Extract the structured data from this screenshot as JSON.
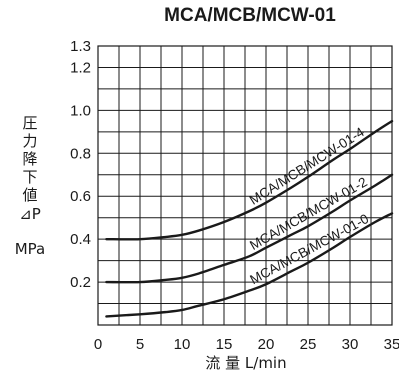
{
  "chart_data": {
    "type": "line",
    "title": "MCA/MCB/MCW-01",
    "ylabel_chars": [
      "圧",
      "力",
      "降",
      "下",
      "値",
      "⊿P"
    ],
    "ylabel_unit": "MPa",
    "xlabel": "流 量 L/min",
    "xlim": [
      0,
      35
    ],
    "ylim": [
      0,
      1.3
    ],
    "x_ticks": [
      0,
      5,
      10,
      15,
      20,
      25,
      30,
      35
    ],
    "y_ticks": [
      0.2,
      0.4,
      0.6,
      0.8,
      1.0,
      1.2,
      1.3
    ],
    "grid": true,
    "series": [
      {
        "name": "MCA/MCB/MCW-01-4",
        "x": [
          1,
          5,
          8,
          10,
          12,
          15,
          18,
          20,
          23,
          25,
          28,
          30,
          33,
          35
        ],
        "y": [
          0.4,
          0.4,
          0.41,
          0.42,
          0.44,
          0.48,
          0.53,
          0.57,
          0.64,
          0.69,
          0.77,
          0.82,
          0.9,
          0.95
        ]
      },
      {
        "name": "MCA/MCB/MCW-01-2",
        "x": [
          1,
          5,
          8,
          10,
          12,
          15,
          18,
          20,
          23,
          25,
          28,
          30,
          33,
          35
        ],
        "y": [
          0.2,
          0.2,
          0.21,
          0.22,
          0.24,
          0.28,
          0.32,
          0.36,
          0.42,
          0.46,
          0.53,
          0.58,
          0.65,
          0.7
        ]
      },
      {
        "name": "MCA/MCB/MCW-01-0",
        "x": [
          1,
          5,
          8,
          10,
          12,
          15,
          18,
          20,
          23,
          25,
          28,
          30,
          33,
          35
        ],
        "y": [
          0.04,
          0.05,
          0.06,
          0.07,
          0.09,
          0.12,
          0.16,
          0.19,
          0.25,
          0.29,
          0.36,
          0.41,
          0.48,
          0.52
        ]
      }
    ]
  }
}
